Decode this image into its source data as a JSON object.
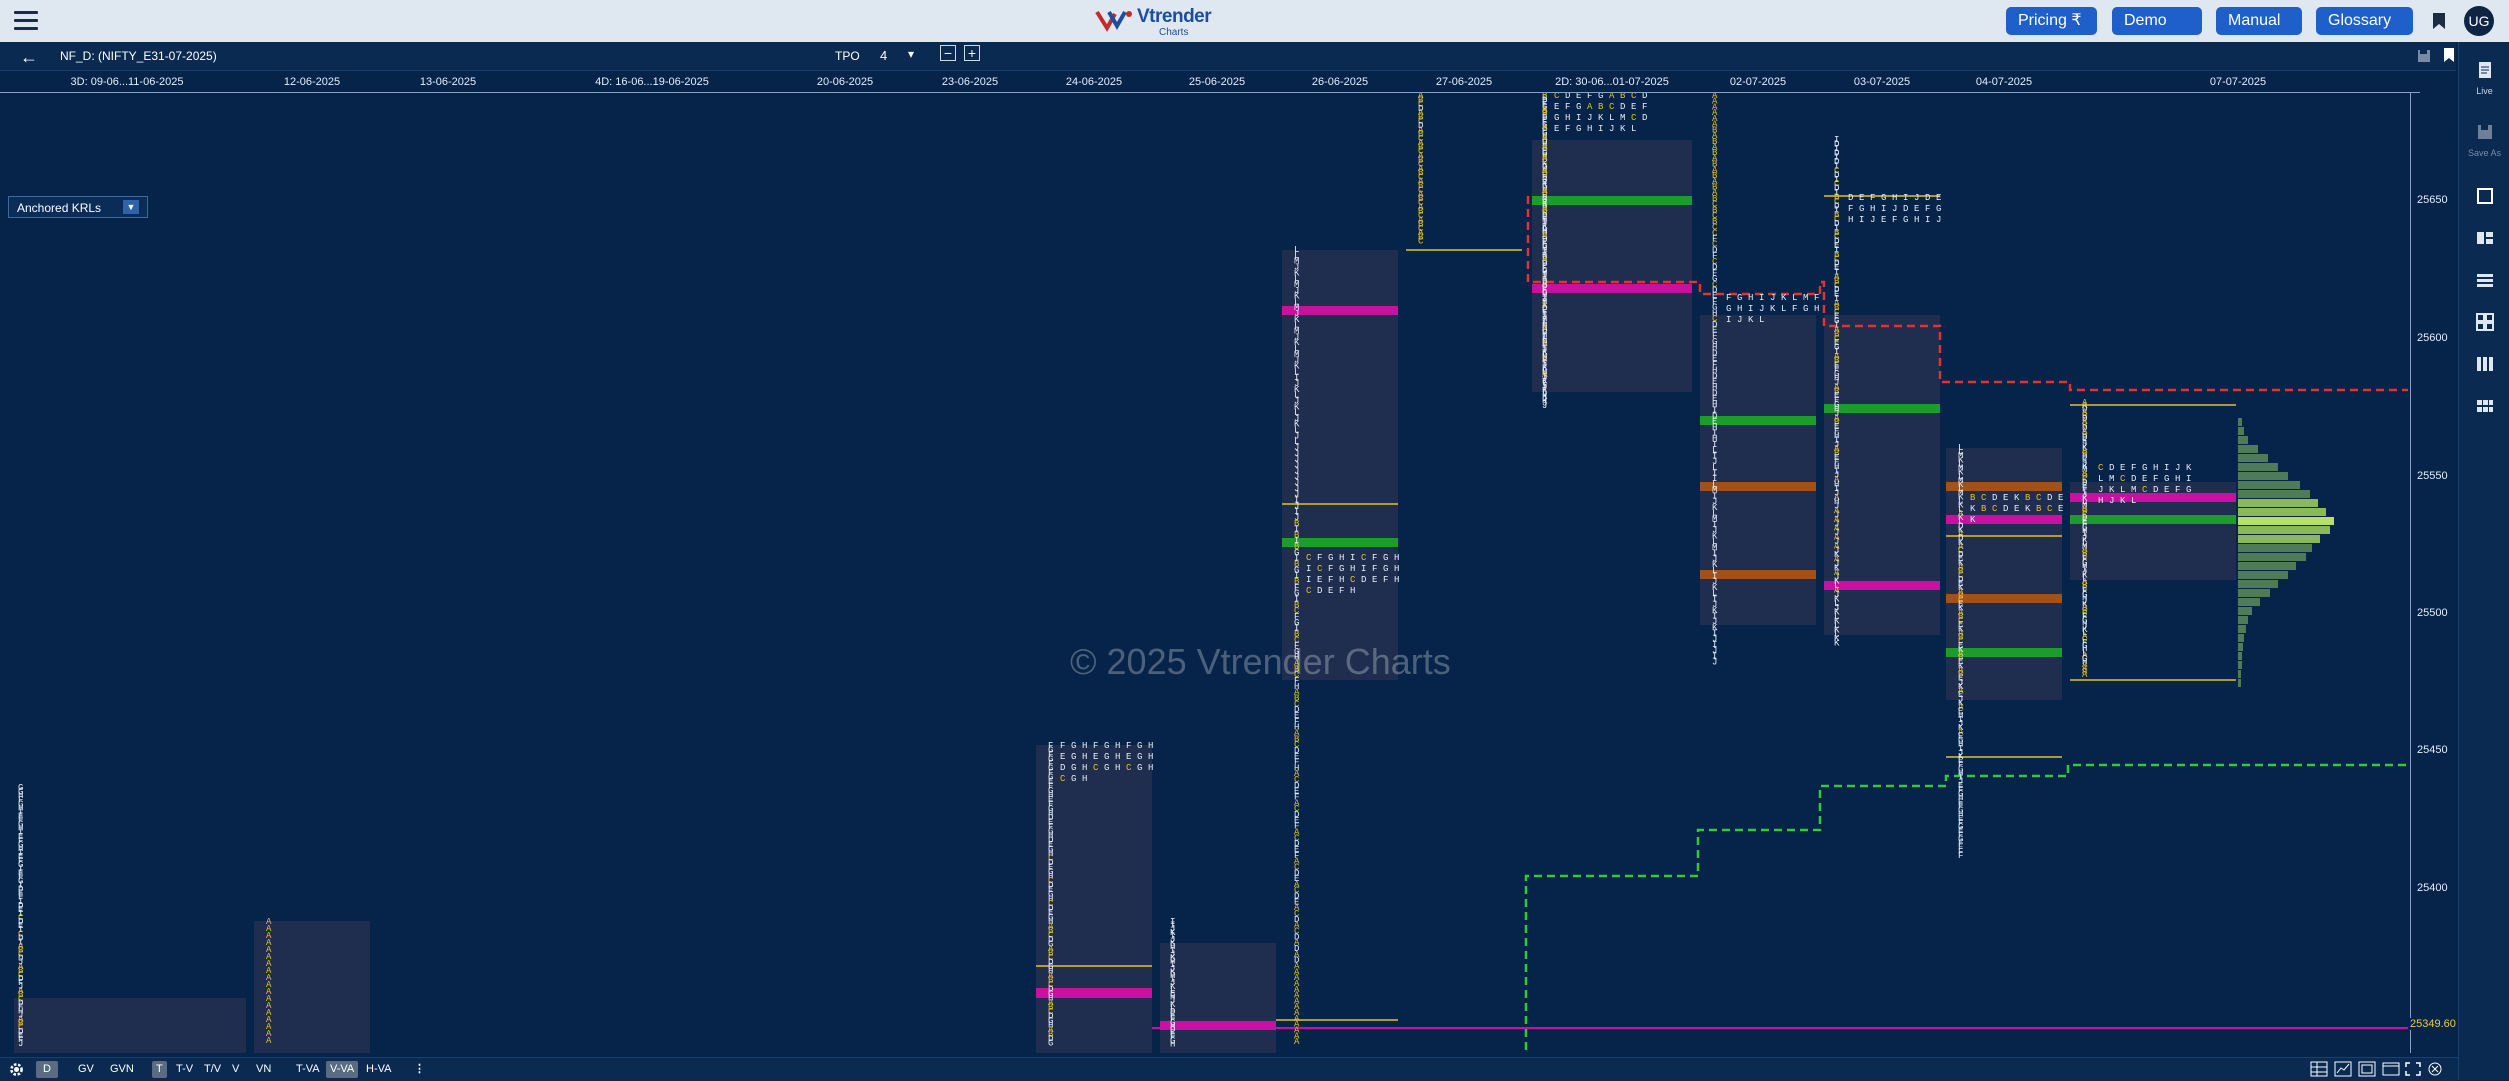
{
  "app": {
    "brand": "Vtrender",
    "brand_sub": "Charts"
  },
  "top_buttons": [
    {
      "label": "Pricing ₹"
    },
    {
      "label": "Demo"
    },
    {
      "label": "Manual"
    },
    {
      "label": "Glossary"
    }
  ],
  "user": {
    "initials": "UG"
  },
  "toolbar": {
    "symbol": "NF_D: (NIFTY_E31-07-2025)",
    "tpo_label": "TPO",
    "tpo_value": "4",
    "minus": "−",
    "plus": "+"
  },
  "dates": [
    "3D: 09-06...11-06-2025",
    "12-06-2025",
    "13-06-2025",
    "4D: 16-06...19-06-2025",
    "20-06-2025",
    "23-06-2025",
    "24-06-2025",
    "25-06-2025",
    "26-06-2025",
    "27-06-2025",
    "2D: 30-06...01-07-2025",
    "02-07-2025",
    "03-07-2025",
    "04-07-2025",
    "07-07-2025"
  ],
  "anchored": {
    "label": "Anchored KRLs"
  },
  "watermark": "© 2025 Vtrender Charts",
  "price_axis": [
    "25650",
    "25600",
    "25550",
    "25500",
    "25450",
    "25400"
  ],
  "last_price": "25349.60",
  "sidebar": [
    {
      "name": "live",
      "label": "Live"
    },
    {
      "name": "save-as",
      "label": "Save As"
    }
  ],
  "bottom_tabs": [
    "D",
    "GV",
    "GVN",
    "T",
    "T-V",
    "T/V",
    "V",
    "VN",
    "T-VA",
    "V-VA",
    "H-VA"
  ],
  "colors": {
    "bg": "#062349",
    "profile": "#1f2d4f",
    "poc": "#c8119e",
    "va": "#1c9c2a",
    "single": "#a0521a",
    "gold": "#e6c12a",
    "red_line": "#e03333",
    "green_line": "#37c837"
  }
}
